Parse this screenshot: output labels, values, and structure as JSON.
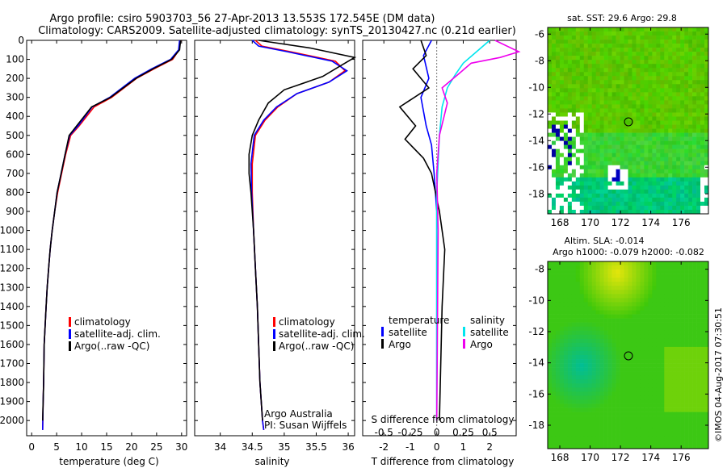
{
  "header": {
    "line1": "Argo profile: csiro 5903703_56 27-Apr-2013 13.553S 172.545E (DM data)",
    "line2": "Climatology: CARS2009. Satellite-adjusted climatology: synTS_20130427.nc (0.21d earlier)"
  },
  "colors": {
    "climatology": "#ff0000",
    "satellite": "#0000ff",
    "argo": "#000000",
    "sal_satellite": "#00e5ee",
    "sal_argo": "#ee00ee"
  },
  "chart_data": [
    {
      "type": "line",
      "panel": "temperature",
      "xlabel": "temperature (deg C)",
      "xlim": [
        -1,
        31
      ],
      "xticks": [
        0,
        5,
        10,
        15,
        20,
        25,
        30
      ],
      "ylim": [
        2080,
        0
      ],
      "yticks": [
        0,
        100,
        200,
        300,
        400,
        500,
        600,
        700,
        800,
        900,
        1000,
        1100,
        1200,
        1300,
        1400,
        1500,
        1600,
        1700,
        1800,
        1900,
        2000
      ],
      "legend": [
        "climatology",
        "satellite-adj. clim.",
        "Argo(..raw -QC)"
      ],
      "series": [
        {
          "name": "climatology",
          "color": "#ff0000",
          "x": [
            29.8,
            29.5,
            28.2,
            24.5,
            21.0,
            16.0,
            12.5,
            9.5,
            7.8,
            6.8,
            6.0,
            5.2,
            4.6,
            4.1,
            3.7,
            3.4,
            3.1,
            2.9,
            2.7,
            2.5,
            2.4,
            2.3,
            2.2
          ],
          "y": [
            0,
            50,
            100,
            150,
            200,
            300,
            350,
            450,
            500,
            600,
            700,
            800,
            900,
            1000,
            1100,
            1200,
            1300,
            1400,
            1500,
            1600,
            1800,
            1900,
            2050
          ]
        },
        {
          "name": "satellite-adj. clim.",
          "color": "#0000ff",
          "x": [
            29.6,
            29.4,
            27.8,
            24.0,
            20.6,
            15.6,
            12.1,
            9.3,
            7.6,
            6.7,
            5.9,
            5.1,
            4.6,
            4.1,
            3.7,
            3.4,
            3.1,
            2.9,
            2.7,
            2.5,
            2.4,
            2.3,
            2.2
          ],
          "y": [
            0,
            50,
            100,
            150,
            200,
            300,
            350,
            450,
            500,
            600,
            700,
            800,
            900,
            1000,
            1100,
            1200,
            1300,
            1400,
            1500,
            1600,
            1800,
            1900,
            2050
          ]
        },
        {
          "name": "Argo(..raw -QC)",
          "color": "#000000",
          "x": [
            29.8,
            29.6,
            28.0,
            24.3,
            20.9,
            15.8,
            12.0,
            9.0,
            7.5,
            6.7,
            5.9,
            5.1,
            4.6,
            4.1,
            3.7,
            3.4,
            3.1,
            2.9,
            2.7,
            2.5,
            2.4,
            2.3,
            2.2
          ],
          "y": [
            0,
            50,
            100,
            150,
            200,
            300,
            350,
            450,
            500,
            600,
            700,
            800,
            900,
            1000,
            1100,
            1200,
            1300,
            1400,
            1500,
            1600,
            1800,
            1900,
            2000
          ]
        }
      ]
    },
    {
      "type": "line",
      "panel": "salinity",
      "xlabel": "salinity",
      "xlim": [
        33.6,
        36.1
      ],
      "xticks": [
        34,
        34.5,
        35,
        35.5,
        36
      ],
      "ylim": [
        2080,
        0
      ],
      "legend": [
        "climatology",
        "satellite-adj. clim.",
        "Argo(..raw -QC)"
      ],
      "annotations": [
        "Argo Australia",
        "PI: Susan Wijffels"
      ],
      "series": [
        {
          "name": "climatology",
          "color": "#ff0000",
          "x": [
            34.55,
            34.65,
            35.1,
            35.8,
            35.95,
            35.7,
            35.2,
            34.9,
            34.7,
            34.55,
            34.5,
            34.5,
            34.52,
            34.55,
            34.58,
            34.6,
            34.62,
            34.64,
            34.66,
            34.68
          ],
          "y": [
            0,
            30,
            60,
            110,
            160,
            220,
            280,
            350,
            420,
            500,
            650,
            800,
            1000,
            1200,
            1400,
            1600,
            1800,
            1900,
            2000,
            2050
          ]
        },
        {
          "name": "satellite-adj. clim.",
          "color": "#0000ff",
          "x": [
            34.5,
            34.6,
            35.05,
            35.75,
            35.98,
            35.7,
            35.2,
            34.88,
            34.68,
            34.53,
            34.48,
            34.49,
            34.52,
            34.55,
            34.58,
            34.6,
            34.62,
            34.64,
            34.66,
            34.68
          ],
          "y": [
            0,
            30,
            60,
            110,
            160,
            220,
            280,
            350,
            420,
            500,
            650,
            800,
            1000,
            1200,
            1400,
            1600,
            1800,
            1900,
            2000,
            2050
          ]
        },
        {
          "name": "Argo(..raw -QC)",
          "color": "#000000",
          "x": [
            34.6,
            35.4,
            36.1,
            35.9,
            35.6,
            35.0,
            34.75,
            34.6,
            34.5,
            34.45,
            34.45,
            34.48,
            34.52,
            34.55,
            34.58,
            34.6,
            34.62,
            34.64,
            34.66
          ],
          "y": [
            0,
            40,
            90,
            130,
            190,
            260,
            330,
            420,
            500,
            600,
            700,
            800,
            1000,
            1200,
            1400,
            1600,
            1800,
            1900,
            2000
          ]
        }
      ]
    },
    {
      "type": "line",
      "panel": "difference",
      "xlabel_top": "S difference from climatology",
      "xlabel_bottom": "T difference from climatology",
      "s_ticks": [
        "-0.5",
        "-0.25",
        "0",
        "0.25",
        "0.5"
      ],
      "t_ticks": [
        "-2",
        "-1",
        "0",
        "1",
        "2"
      ],
      "xlim": [
        -2.8,
        3.0
      ],
      "ylim": [
        2080,
        0
      ],
      "legend_temperature": {
        "title": "temperature",
        "items": [
          "satellite",
          "Argo"
        ]
      },
      "legend_salinity": {
        "title": "salinity",
        "items": [
          "satellite",
          "Argo"
        ]
      },
      "series": [
        {
          "name": "temperature satellite",
          "color": "#0000ff",
          "x": [
            -0.2,
            -0.5,
            -0.3,
            -0.6,
            -0.4,
            -0.2,
            -0.1,
            0.0,
            0.0,
            0.0
          ],
          "y": [
            0,
            80,
            200,
            300,
            450,
            550,
            700,
            900,
            1400,
            2000
          ]
        },
        {
          "name": "temperature Argo",
          "color": "#000000",
          "x": [
            -0.6,
            -0.4,
            -0.9,
            -0.3,
            -1.4,
            -0.8,
            -1.2,
            -0.5,
            -0.2,
            0.1,
            0.3,
            0.2,
            0.1
          ],
          "y": [
            0,
            80,
            150,
            250,
            350,
            450,
            520,
            620,
            700,
            900,
            1100,
            1400,
            2000
          ]
        },
        {
          "name": "salinity satellite",
          "color": "#00e5ee",
          "x": [
            2.0,
            1.5,
            1.0,
            0.7,
            0.4,
            0.2,
            0.1,
            0.0,
            0.0
          ],
          "y": [
            0,
            60,
            120,
            180,
            250,
            350,
            500,
            800,
            2000
          ]
        },
        {
          "name": "salinity Argo",
          "color": "#ee00ee",
          "x": [
            2.2,
            3.1,
            2.4,
            1.3,
            0.8,
            0.2,
            0.4,
            0.1,
            0.0,
            0.05,
            0.0
          ],
          "y": [
            0,
            60,
            90,
            120,
            180,
            250,
            330,
            500,
            700,
            1000,
            2000
          ]
        }
      ]
    },
    {
      "type": "heatmap",
      "panel": "sst_map",
      "title": "sat. SST: 29.6 Argo: 29.8",
      "xticks": [
        "168",
        "170",
        "172",
        "174",
        "176"
      ],
      "yticks": [
        "-6",
        "-8",
        "-10",
        "-12",
        "-14",
        "-16",
        "-18"
      ],
      "argo_position": {
        "lon": 172.545,
        "lat": -13.553
      }
    },
    {
      "type": "heatmap",
      "panel": "sla_map",
      "title_line1": "Altim. SLA: -0.014",
      "title_line2": "Argo h1000: -0.079 h2000: -0.082",
      "xticks": [
        "168",
        "170",
        "172",
        "174",
        "176"
      ],
      "yticks": [
        "-8",
        "-10",
        "-12",
        "-14",
        "-16",
        "-18"
      ],
      "argo_position": {
        "lon": 172.545,
        "lat": -13.553
      }
    }
  ],
  "footer": {
    "stamp": "©IMOS 04-Aug-2017 07:30:51"
  }
}
